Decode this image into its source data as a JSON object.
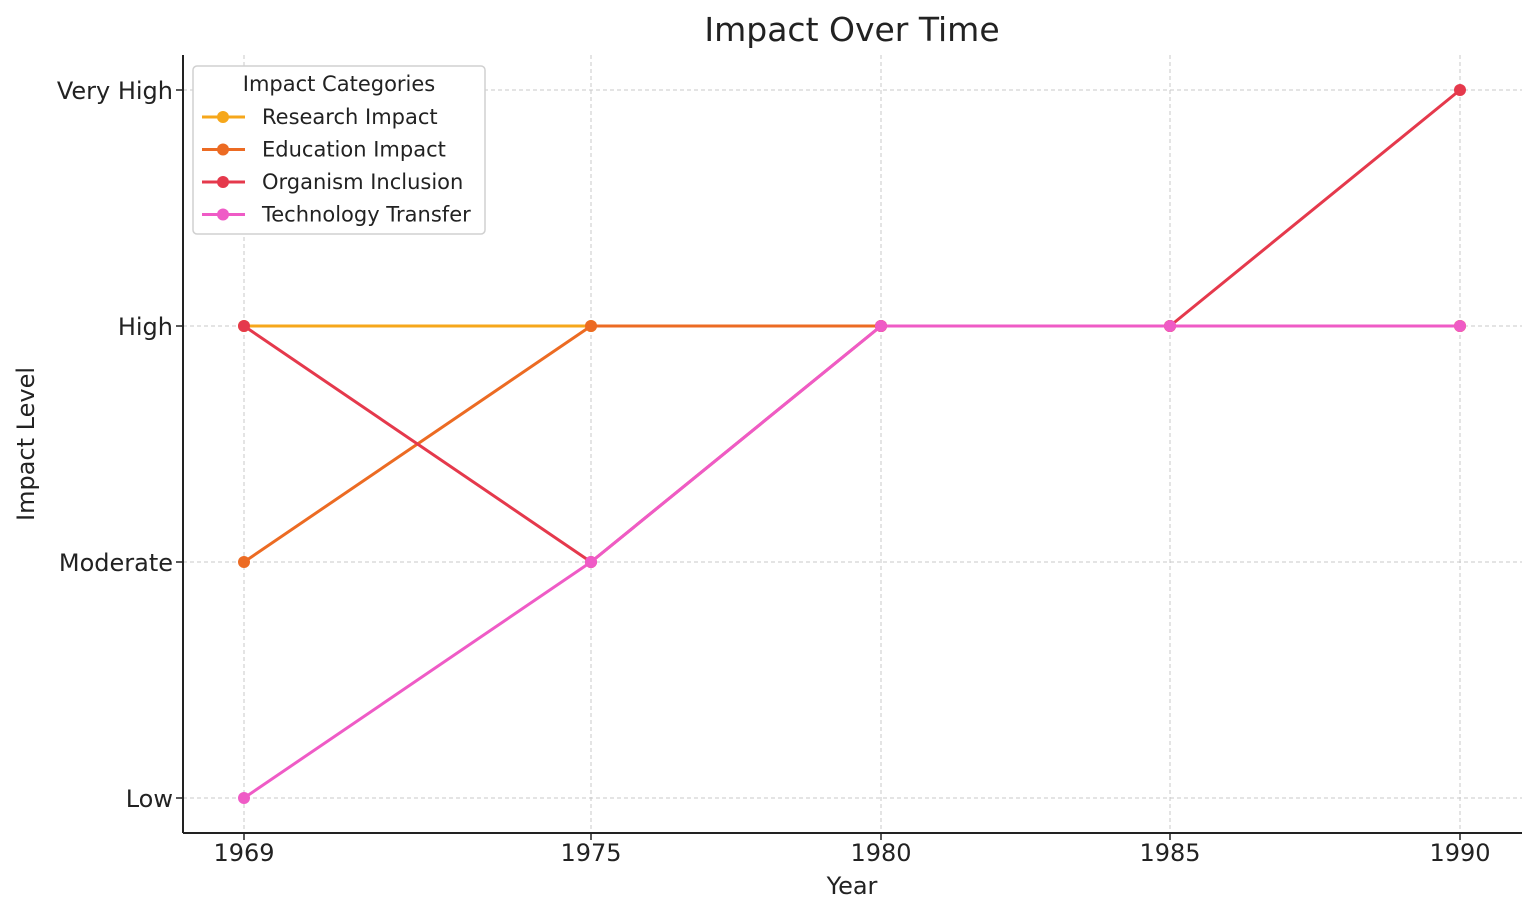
{
  "chart_data": {
    "type": "line",
    "title": "Impact Over Time",
    "xlabel": "Year",
    "ylabel": "Impact Level",
    "x": [
      1969,
      1975,
      1980,
      1985,
      1990
    ],
    "x_tick_labels": [
      "1969",
      "1975",
      "1980",
      "1985",
      "1990"
    ],
    "y_levels": [
      "Low",
      "Moderate",
      "High",
      "Very High"
    ],
    "ylim": [
      0,
      3
    ],
    "grid": true,
    "legend": {
      "title": "Impact Categories",
      "placement": "top-left"
    },
    "series": [
      {
        "name": "Research Impact",
        "color": "#f6a71b",
        "values": [
          "High",
          "High",
          "High",
          "High",
          "High"
        ]
      },
      {
        "name": "Education Impact",
        "color": "#ec6b23",
        "values": [
          "Moderate",
          "High",
          "High",
          "High",
          "High"
        ]
      },
      {
        "name": "Organism Inclusion",
        "color": "#e5394c",
        "values": [
          "High",
          "Moderate",
          "High",
          "High",
          "Very High"
        ]
      },
      {
        "name": "Technology Transfer",
        "color": "#ef5bc6",
        "values": [
          "Low",
          "Moderate",
          "High",
          "High",
          "High"
        ]
      }
    ]
  }
}
